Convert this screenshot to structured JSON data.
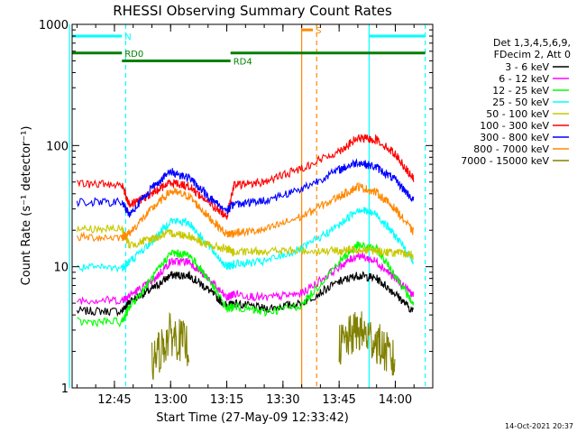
{
  "chart_data": {
    "type": "line",
    "title": "RHESSI Observing Summary Count Rates",
    "xlabel": "Start Time (27-May-09 12:33:42)",
    "ylabel": "Count Rate (s⁻¹ detector⁻¹)",
    "y_scale": "log",
    "ylim": [
      1,
      1000
    ],
    "xlim_minutes_utc": [
      12.55,
      14.15
    ],
    "x_tick_labels": [
      "12:45",
      "13:00",
      "13:15",
      "13:30",
      "13:45",
      "14:00"
    ],
    "y_tick_labels": [
      "1",
      "10",
      "100",
      "1000"
    ],
    "legend_header": [
      "Det 1,3,4,5,6,9,",
      "FDecim 2, Att 0"
    ],
    "legend_placement": "right",
    "timestamp": "14-Oct-2021 20:37",
    "series": [
      {
        "name": "3 - 6 keV",
        "color": "#000000",
        "x": [
          "12:35",
          "12:47",
          "12:49",
          "12:55",
          "13:00",
          "13:05",
          "13:10",
          "13:15",
          "13:17",
          "13:25",
          "13:35",
          "13:45",
          "13:50",
          "13:55",
          "14:00",
          "14:05"
        ],
        "y": [
          4.3,
          4.3,
          5.2,
          6.5,
          8.5,
          8.5,
          6.5,
          4.7,
          5.0,
          4.5,
          5.0,
          7.5,
          8.5,
          8.0,
          6.0,
          4.2
        ]
      },
      {
        "name": "6 - 12 keV",
        "color": "#ff00ff",
        "x": [
          "12:35",
          "12:47",
          "12:49",
          "12:55",
          "13:00",
          "13:05",
          "13:10",
          "13:15",
          "13:17",
          "13:25",
          "13:35",
          "13:45",
          "13:50",
          "13:55",
          "14:00",
          "14:05"
        ],
        "y": [
          5.3,
          5.3,
          5.8,
          7.5,
          11,
          11,
          8,
          5.5,
          6.0,
          5.5,
          6.0,
          10,
          12.5,
          11,
          8,
          5.8
        ]
      },
      {
        "name": "12 - 25 keV",
        "color": "#00ff00",
        "x": [
          "12:35",
          "12:47",
          "12:49",
          "12:55",
          "13:00",
          "13:05",
          "13:10",
          "13:15",
          "13:17",
          "13:25",
          "13:35",
          "13:45",
          "13:50",
          "13:55",
          "14:00",
          "14:05"
        ],
        "y": [
          3.5,
          3.5,
          4.6,
          8,
          13,
          12.5,
          8,
          4.5,
          4.7,
          4.2,
          4.8,
          11,
          15,
          14,
          8.5,
          4.8
        ]
      },
      {
        "name": "25 - 50 keV",
        "color": "#00ffff",
        "x": [
          "12:35",
          "12:47",
          "12:49",
          "12:55",
          "13:00",
          "13:05",
          "13:10",
          "13:15",
          "13:17",
          "13:25",
          "13:35",
          "13:45",
          "13:50",
          "13:55",
          "14:00",
          "14:05"
        ],
        "y": [
          9.8,
          9.8,
          11,
          16,
          24,
          23,
          15,
          10,
          10.5,
          11,
          14,
          22,
          30,
          27,
          18,
          11
        ]
      },
      {
        "name": "50 - 100 keV",
        "color": "#c8c800",
        "x": [
          "12:35",
          "12:47",
          "12:49",
          "12:55",
          "13:00",
          "13:05",
          "13:10",
          "13:15",
          "13:17",
          "13:25",
          "13:35",
          "13:45",
          "13:50",
          "13:55",
          "14:00",
          "14:05"
        ],
        "y": [
          20.5,
          20.5,
          15,
          17,
          19,
          18,
          15,
          14,
          13,
          13.5,
          13.5,
          13.5,
          14,
          13.5,
          13,
          12.5
        ]
      },
      {
        "name": "100 - 300 keV",
        "color": "#ff0000",
        "x": [
          "12:35",
          "12:47",
          "12:49",
          "12:55",
          "13:00",
          "13:05",
          "13:10",
          "13:15",
          "13:17",
          "13:25",
          "13:35",
          "13:45",
          "13:50",
          "13:55",
          "14:00",
          "14:05"
        ],
        "y": [
          48,
          48,
          32,
          40,
          50,
          46,
          34,
          26,
          47,
          50,
          65,
          90,
          115,
          112,
          85,
          52
        ]
      },
      {
        "name": "300 - 800 keV",
        "color": "#0000ff",
        "x": [
          "12:35",
          "12:47",
          "12:49",
          "12:55",
          "13:00",
          "13:05",
          "13:10",
          "13:15",
          "13:17",
          "13:25",
          "13:35",
          "13:45",
          "13:50",
          "13:55",
          "14:00",
          "14:05"
        ],
        "y": [
          34,
          34,
          27,
          45,
          61,
          54,
          38,
          29,
          33,
          35,
          44,
          63,
          73,
          66,
          52,
          35
        ]
      },
      {
        "name": "800 - 7000 keV",
        "color": "#ff8800",
        "x": [
          "12:35",
          "12:47",
          "12:49",
          "12:55",
          "13:00",
          "13:05",
          "13:10",
          "13:15",
          "13:17",
          "13:25",
          "13:35",
          "13:45",
          "13:50",
          "13:55",
          "14:00",
          "14:05"
        ],
        "y": [
          17.5,
          17.5,
          19,
          30,
          42,
          38,
          26,
          18.5,
          19,
          20,
          26,
          38,
          46,
          41,
          30,
          19
        ]
      },
      {
        "name": "7000 - 15000 keV",
        "color": "#808000",
        "x": [
          "12:35",
          "12:47",
          "12:49",
          "12:55",
          "13:00",
          "13:05",
          "13:10",
          "13:15",
          "13:17",
          "13:25",
          "13:35",
          "13:45",
          "13:50",
          "13:55",
          "14:00",
          "14:05"
        ],
        "y": [
          null,
          null,
          null,
          1.6,
          2.8,
          2.2,
          null,
          null,
          null,
          null,
          null,
          2.2,
          3.0,
          2.4,
          1.6,
          null
        ]
      }
    ],
    "attenuator_bars": [
      {
        "label": "N",
        "color": "#00ffff",
        "y": 800,
        "x_start": "12:33",
        "x_end": "12:47"
      },
      {
        "label": "",
        "color": "#00ffff",
        "y": 800,
        "x_start": "13:53",
        "x_end": "14:08"
      },
      {
        "label": "RD0",
        "color": "#008000",
        "y": 580,
        "x_start": "12:33",
        "x_end": "12:47"
      },
      {
        "label": "RD4",
        "color": "#008000",
        "y": 500,
        "x_start": "12:47",
        "x_end": "13:16"
      },
      {
        "label": "",
        "color": "#008000",
        "y": 580,
        "x_start": "13:16",
        "x_end": "14:08"
      },
      {
        "label": "S",
        "color": "#ff8800",
        "y": 900,
        "x_start": "13:35",
        "x_end": "13:38"
      }
    ],
    "vertical_markers": [
      {
        "color": "#00ffff",
        "style": "solid",
        "x": "12:33"
      },
      {
        "color": "#00ffff",
        "style": "dashed",
        "x": "12:48"
      },
      {
        "color": "#00ffff",
        "style": "solid",
        "x": "13:53"
      },
      {
        "color": "#00ffff",
        "style": "dashed",
        "x": "14:08"
      },
      {
        "color": "#ff8800",
        "style": "solid",
        "x": "13:35"
      },
      {
        "color": "#ff8800",
        "style": "dashed",
        "x": "13:39"
      }
    ]
  }
}
